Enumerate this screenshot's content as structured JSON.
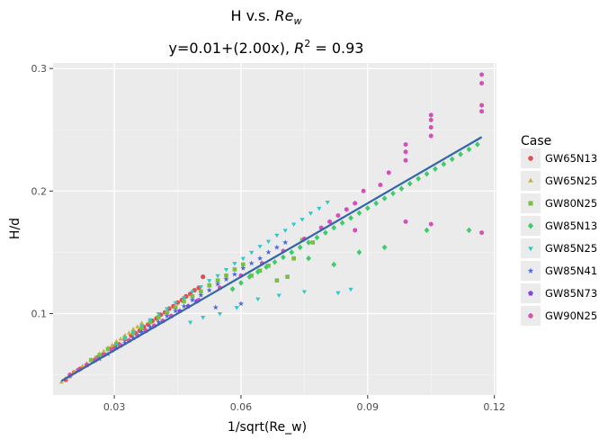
{
  "chart_data": {
    "type": "scatter",
    "title_main": "H v.s. ",
    "title_var": "Re",
    "title_var_sub": "w",
    "subtitle_main": "y=0.01+(2.00x), ",
    "subtitle_r": "R",
    "subtitle_r_sup": "2",
    "subtitle_tail": " = 0.93",
    "xlabel": "1/sqrt(Re_w)",
    "ylabel": "H/d",
    "xlim": [
      0.0155,
      0.1205
    ],
    "ylim": [
      0.0335,
      0.3045
    ],
    "x_ticks": [
      0.03,
      0.06,
      0.09,
      0.12
    ],
    "x_tick_labels": [
      "0.03",
      "0.06",
      "0.09",
      "0.12"
    ],
    "y_ticks": [
      0.1,
      0.2,
      0.3
    ],
    "y_tick_labels": [
      "0.1",
      "0.2",
      "0.3"
    ],
    "grid": true,
    "legend_title": "Case",
    "legend_position": "right",
    "fit": {
      "intercept": 0.01,
      "slope": 2.0,
      "x_range": [
        0.0175,
        0.117
      ],
      "color": "#3366aa",
      "band_color": "#a9a9a9"
    },
    "series": [
      {
        "name": "GW65N13",
        "color": "#e04e4e",
        "marker": "circle",
        "x": [
          0.0185,
          0.0195,
          0.0205,
          0.022,
          0.0235,
          0.025,
          0.026,
          0.0275,
          0.029,
          0.03,
          0.031,
          0.0325,
          0.034,
          0.035,
          0.036,
          0.037,
          0.038,
          0.039,
          0.04,
          0.041,
          0.042,
          0.043,
          0.044,
          0.045,
          0.046,
          0.047,
          0.048,
          0.049,
          0.05,
          0.051
        ],
        "y": [
          0.046,
          0.049,
          0.052,
          0.055,
          0.058,
          0.061,
          0.064,
          0.067,
          0.071,
          0.073,
          0.075,
          0.079,
          0.082,
          0.084,
          0.086,
          0.089,
          0.091,
          0.094,
          0.096,
          0.099,
          0.101,
          0.104,
          0.106,
          0.109,
          0.111,
          0.114,
          0.116,
          0.119,
          0.121,
          0.13
        ]
      },
      {
        "name": "GW65N25",
        "color": "#c8b040",
        "marker": "triangle",
        "x": [
          0.0175,
          0.0185,
          0.0195,
          0.0205,
          0.0215,
          0.0225,
          0.0235,
          0.0245,
          0.0255,
          0.0265,
          0.0275,
          0.0285,
          0.0295,
          0.0305,
          0.0315,
          0.0325,
          0.0335,
          0.0345,
          0.0355,
          0.0365
        ],
        "y": [
          0.044,
          0.047,
          0.049,
          0.052,
          0.054,
          0.057,
          0.059,
          0.062,
          0.064,
          0.067,
          0.069,
          0.072,
          0.074,
          0.077,
          0.079,
          0.082,
          0.084,
          0.087,
          0.089,
          0.092
        ]
      },
      {
        "name": "GW80N25",
        "color": "#7bc043",
        "marker": "square",
        "x": [
          0.0245,
          0.0265,
          0.0285,
          0.0305,
          0.0325,
          0.0345,
          0.0365,
          0.0385,
          0.0405,
          0.0425,
          0.0445,
          0.0465,
          0.0485,
          0.0505,
          0.0525,
          0.0545,
          0.0565,
          0.0585,
          0.0605,
          0.0625,
          0.0645,
          0.0665,
          0.0685,
          0.071,
          0.0725,
          0.0745,
          0.077
        ],
        "y": [
          0.062,
          0.066,
          0.071,
          0.075,
          0.08,
          0.084,
          0.088,
          0.093,
          0.097,
          0.101,
          0.105,
          0.11,
          0.114,
          0.118,
          0.123,
          0.127,
          0.131,
          0.136,
          0.14,
          0.131,
          0.135,
          0.139,
          0.127,
          0.13,
          0.145,
          0.16,
          0.158
        ]
      },
      {
        "name": "GW85N13",
        "color": "#3ccc68",
        "marker": "diamond",
        "x": [
          0.058,
          0.06,
          0.062,
          0.064,
          0.066,
          0.068,
          0.07,
          0.072,
          0.074,
          0.076,
          0.078,
          0.08,
          0.082,
          0.084,
          0.086,
          0.088,
          0.09,
          0.092,
          0.094,
          0.096,
          0.098,
          0.1,
          0.102,
          0.104,
          0.106,
          0.108,
          0.11,
          0.112,
          0.114,
          0.116,
          0.088,
          0.094,
          0.104,
          0.114,
          0.082,
          0.076
        ],
        "y": [
          0.12,
          0.125,
          0.13,
          0.134,
          0.138,
          0.142,
          0.146,
          0.15,
          0.154,
          0.158,
          0.162,
          0.166,
          0.17,
          0.174,
          0.178,
          0.182,
          0.186,
          0.19,
          0.194,
          0.198,
          0.202,
          0.206,
          0.21,
          0.214,
          0.218,
          0.222,
          0.226,
          0.23,
          0.234,
          0.238,
          0.15,
          0.154,
          0.168,
          0.168,
          0.14,
          0.145
        ]
      },
      {
        "name": "GW85N25",
        "color": "#2ec8c8",
        "marker": "triangle-down",
        "x": [
          0.0305,
          0.0325,
          0.0345,
          0.0365,
          0.0385,
          0.0405,
          0.0425,
          0.0445,
          0.0465,
          0.0485,
          0.0505,
          0.0525,
          0.0545,
          0.0565,
          0.0585,
          0.0605,
          0.0625,
          0.0645,
          0.0665,
          0.0685,
          0.0705,
          0.0725,
          0.0745,
          0.0765,
          0.0785,
          0.0805,
          0.048,
          0.051,
          0.055,
          0.059,
          0.064,
          0.069,
          0.075,
          0.083,
          0.086
        ],
        "y": [
          0.075,
          0.08,
          0.085,
          0.09,
          0.095,
          0.1,
          0.104,
          0.109,
          0.113,
          0.118,
          0.122,
          0.127,
          0.131,
          0.136,
          0.141,
          0.145,
          0.15,
          0.155,
          0.159,
          0.164,
          0.168,
          0.173,
          0.177,
          0.182,
          0.186,
          0.191,
          0.093,
          0.097,
          0.1,
          0.105,
          0.112,
          0.115,
          0.118,
          0.117,
          0.12
        ]
      },
      {
        "name": "GW85N41",
        "color": "#4a66e0",
        "marker": "star",
        "x": [
          0.0265,
          0.0285,
          0.0305,
          0.0325,
          0.0345,
          0.0365,
          0.0385,
          0.0405,
          0.0425,
          0.0445,
          0.0465,
          0.0485,
          0.0505,
          0.0525,
          0.0545,
          0.0565,
          0.0585,
          0.0605,
          0.0625,
          0.0645,
          0.0665,
          0.0685,
          0.0705,
          0.054,
          0.06
        ],
        "y": [
          0.063,
          0.067,
          0.072,
          0.076,
          0.08,
          0.085,
          0.089,
          0.093,
          0.098,
          0.102,
          0.106,
          0.111,
          0.115,
          0.119,
          0.124,
          0.128,
          0.132,
          0.137,
          0.141,
          0.145,
          0.15,
          0.154,
          0.158,
          0.105,
          0.108
        ]
      },
      {
        "name": "GW85N73",
        "color": "#8844dd",
        "marker": "pentagon",
        "x": [
          0.0215,
          0.0235,
          0.0255,
          0.0275,
          0.0295,
          0.0315,
          0.0335,
          0.0355,
          0.0375,
          0.0395,
          0.0415,
          0.0435,
          0.0455,
          0.0475,
          0.0495
        ],
        "y": [
          0.054,
          0.058,
          0.062,
          0.066,
          0.07,
          0.074,
          0.078,
          0.082,
          0.086,
          0.09,
          0.094,
          0.098,
          0.102,
          0.106,
          0.11
        ]
      },
      {
        "name": "GW90N25",
        "color": "#d64fb8",
        "marker": "hexagon",
        "x": [
          0.0195,
          0.0215,
          0.0235,
          0.0255,
          0.0275,
          0.0295,
          0.0315,
          0.0335,
          0.0355,
          0.0375,
          0.0395,
          0.0415,
          0.0435,
          0.05,
          0.055,
          0.06,
          0.065,
          0.07,
          0.075,
          0.079,
          0.081,
          0.083,
          0.085,
          0.087,
          0.089,
          0.093,
          0.095,
          0.099,
          0.099,
          0.099,
          0.105,
          0.105,
          0.105,
          0.105,
          0.117,
          0.117,
          0.117,
          0.117,
          0.099,
          0.105,
          0.117,
          0.087
        ],
        "y": [
          0.05,
          0.054,
          0.058,
          0.062,
          0.066,
          0.07,
          0.074,
          0.078,
          0.082,
          0.086,
          0.09,
          0.094,
          0.098,
          0.111,
          0.121,
          0.131,
          0.141,
          0.151,
          0.161,
          0.17,
          0.175,
          0.18,
          0.185,
          0.19,
          0.2,
          0.205,
          0.215,
          0.225,
          0.232,
          0.238,
          0.245,
          0.252,
          0.258,
          0.262,
          0.265,
          0.27,
          0.288,
          0.295,
          0.175,
          0.173,
          0.166,
          0.168
        ]
      }
    ]
  }
}
